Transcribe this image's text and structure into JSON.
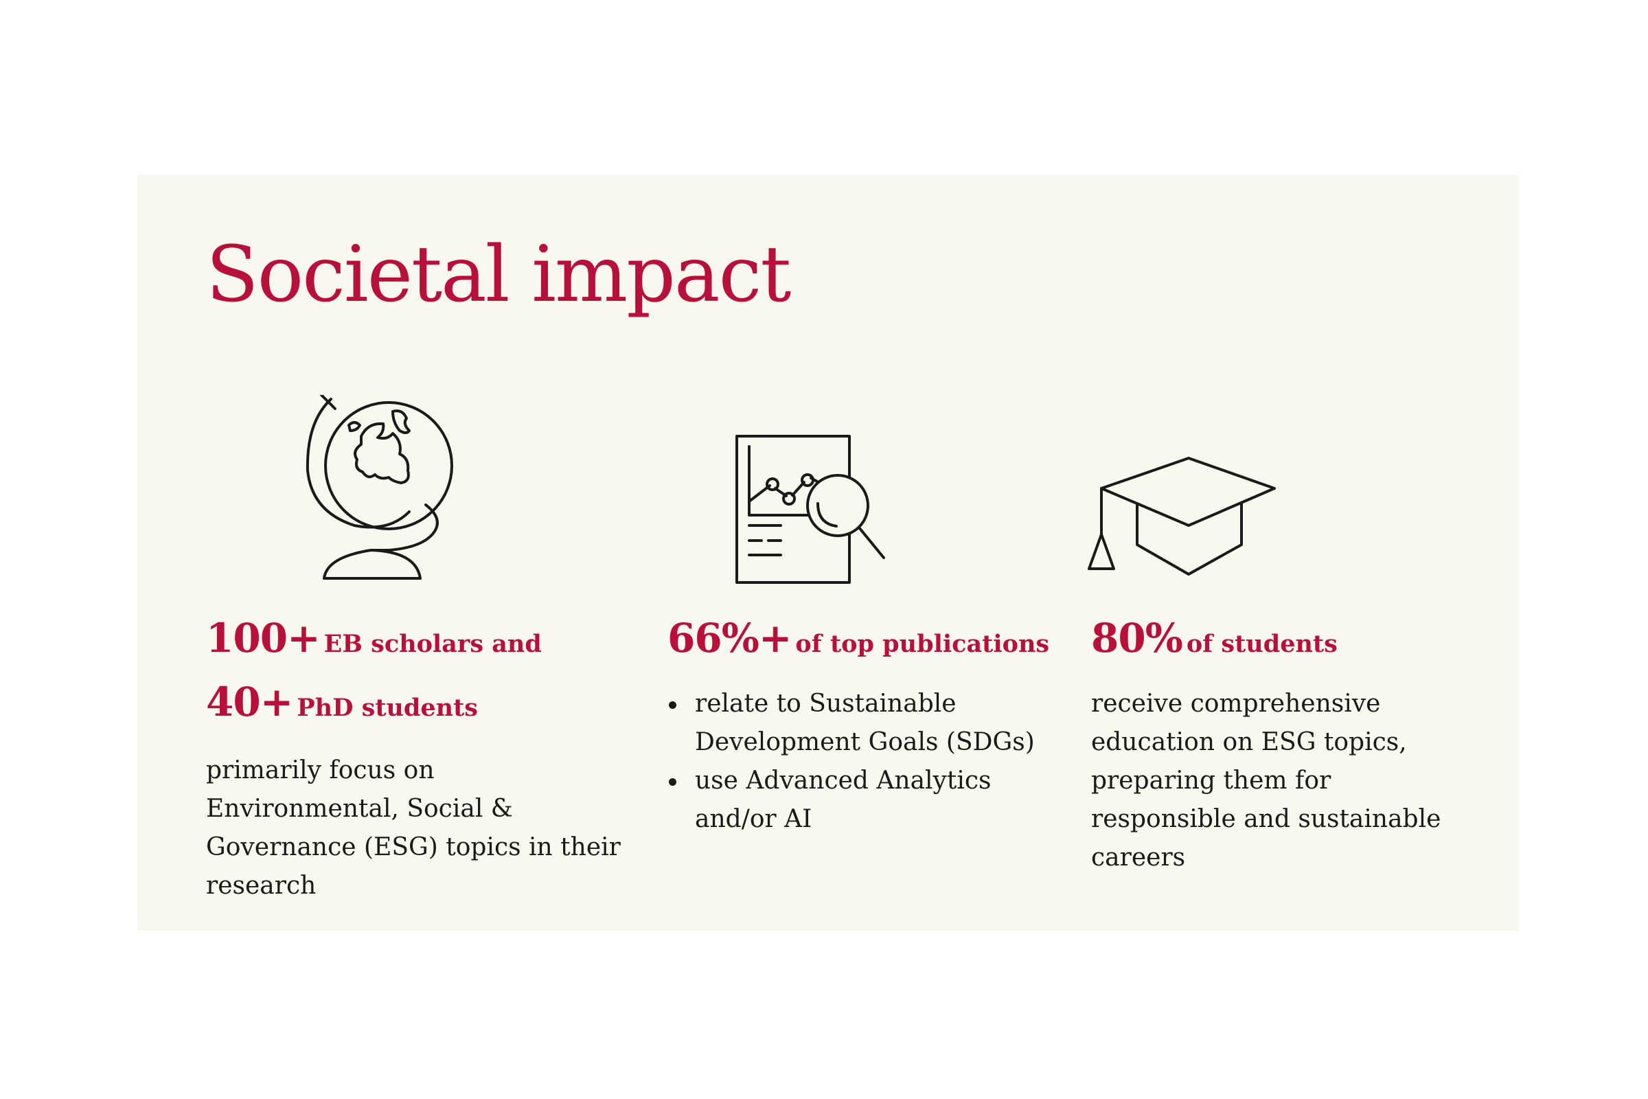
{
  "title": "Societal impact",
  "accent_color": "#b8103a",
  "panel_color": "#f9f8ee",
  "columns": [
    {
      "icon": "globe-icon",
      "stats": [
        {
          "number": "100+",
          "label": "EB scholars and"
        },
        {
          "number": "40+",
          "label": "PhD students"
        }
      ],
      "description": "primarily focus on Environmental, Social & Governance (ESG) topics in their research"
    },
    {
      "icon": "report-magnifier-icon",
      "stats": [
        {
          "number": "66%+",
          "label": "of top publications"
        }
      ],
      "bullets": [
        "relate to Sustainable Development Goals (SDGs)",
        "use Advanced Analytics and/or AI"
      ]
    },
    {
      "icon": "graduation-cap-icon",
      "stats": [
        {
          "number": "80%",
          "label": "of students"
        }
      ],
      "description": "receive comprehensive education on ESG topics, preparing them for responsible and sustainable careers"
    }
  ]
}
